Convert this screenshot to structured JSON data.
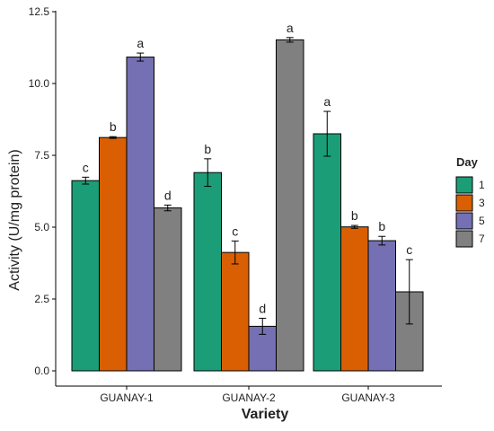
{
  "chart_data": {
    "type": "bar",
    "xlabel": "Variety",
    "ylabel": "Activity (U/mg protein)",
    "ylim": [
      0,
      12.7
    ],
    "yticks": [
      0.0,
      2.5,
      5.0,
      7.5,
      10.0,
      12.5
    ],
    "ytick_labels": [
      "0.0",
      "2.5",
      "5.0",
      "7.5",
      "10.0",
      "12.5"
    ],
    "categories": [
      "GUANAY-1",
      "GUANAY-2",
      "GUANAY-3"
    ],
    "legend": {
      "title": "Day",
      "position": "right"
    },
    "series": [
      {
        "name": "1",
        "color": "#1b9e77",
        "values": [
          6.62,
          6.9,
          8.25
        ],
        "errors": [
          0.12,
          0.48,
          0.78
        ],
        "letters": [
          "c",
          "b",
          "a"
        ]
      },
      {
        "name": "3",
        "color": "#d95f02",
        "values": [
          8.12,
          4.12,
          5.01
        ],
        "errors": [
          0.03,
          0.4,
          0.05
        ],
        "letters": [
          "b",
          "c",
          "b"
        ]
      },
      {
        "name": "5",
        "color": "#7570b3",
        "values": [
          10.92,
          1.55,
          4.53
        ],
        "errors": [
          0.14,
          0.28,
          0.15
        ],
        "letters": [
          "a",
          "d",
          "b"
        ]
      },
      {
        "name": "7",
        "color": "#808080",
        "values": [
          5.67,
          11.52,
          2.75
        ],
        "errors": [
          0.1,
          0.08,
          1.12
        ],
        "letters": [
          "d",
          "a",
          "c"
        ]
      }
    ]
  }
}
